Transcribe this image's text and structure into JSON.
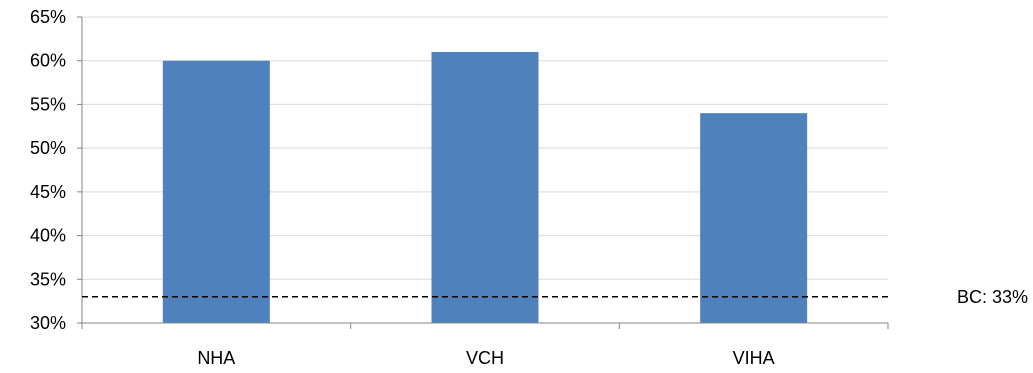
{
  "chart_data": {
    "type": "bar",
    "title": "",
    "xlabel": "",
    "ylabel": "",
    "categories": [
      "NHA",
      "VCH",
      "VIHA"
    ],
    "values": [
      60,
      61,
      54
    ],
    "ylim": [
      30,
      65
    ],
    "yticks": [
      30,
      35,
      40,
      45,
      50,
      55,
      60,
      65
    ],
    "ytick_suffix": "%",
    "grid": true,
    "bar_color": "#4F81BD",
    "grid_color": "#D9D9D9",
    "reference_line": {
      "value": 33,
      "label": "BC: 33%",
      "style": "dashed",
      "color": "#000000"
    }
  }
}
